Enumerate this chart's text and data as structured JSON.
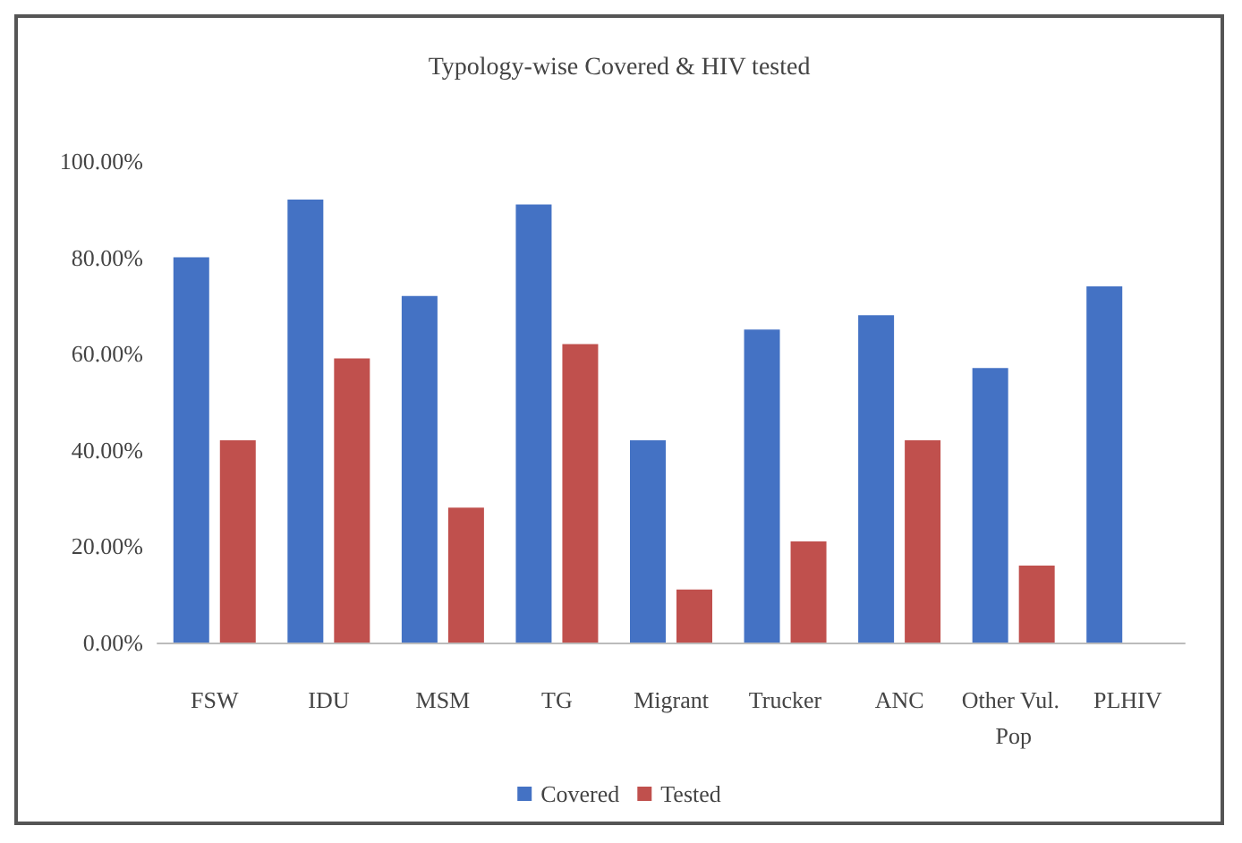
{
  "chart_data": {
    "type": "bar",
    "title": "Typology-wise Covered & HIV tested",
    "categories": [
      "FSW",
      "IDU",
      "MSM",
      "TG",
      "Migrant",
      "Trucker",
      "ANC",
      "Other Vul. Pop",
      "PLHIV"
    ],
    "series": [
      {
        "name": "Covered",
        "color": "#4472c4",
        "values": [
          80,
          92,
          72,
          91,
          42,
          65,
          68,
          57,
          74
        ]
      },
      {
        "name": "Tested",
        "color": "#c0504d",
        "values": [
          42,
          59,
          28,
          62,
          11,
          21,
          42,
          16,
          null
        ]
      }
    ],
    "ylim": [
      0,
      100
    ],
    "yticks": [
      {
        "value": 0,
        "label": "0.00%"
      },
      {
        "value": 20,
        "label": "20.00%"
      },
      {
        "value": 40,
        "label": "40.00%"
      },
      {
        "value": 60,
        "label": "60.00%"
      },
      {
        "value": 80,
        "label": "80.00%"
      },
      {
        "value": 100,
        "label": "100.00%"
      }
    ],
    "grid": false,
    "legend": "bottom"
  }
}
